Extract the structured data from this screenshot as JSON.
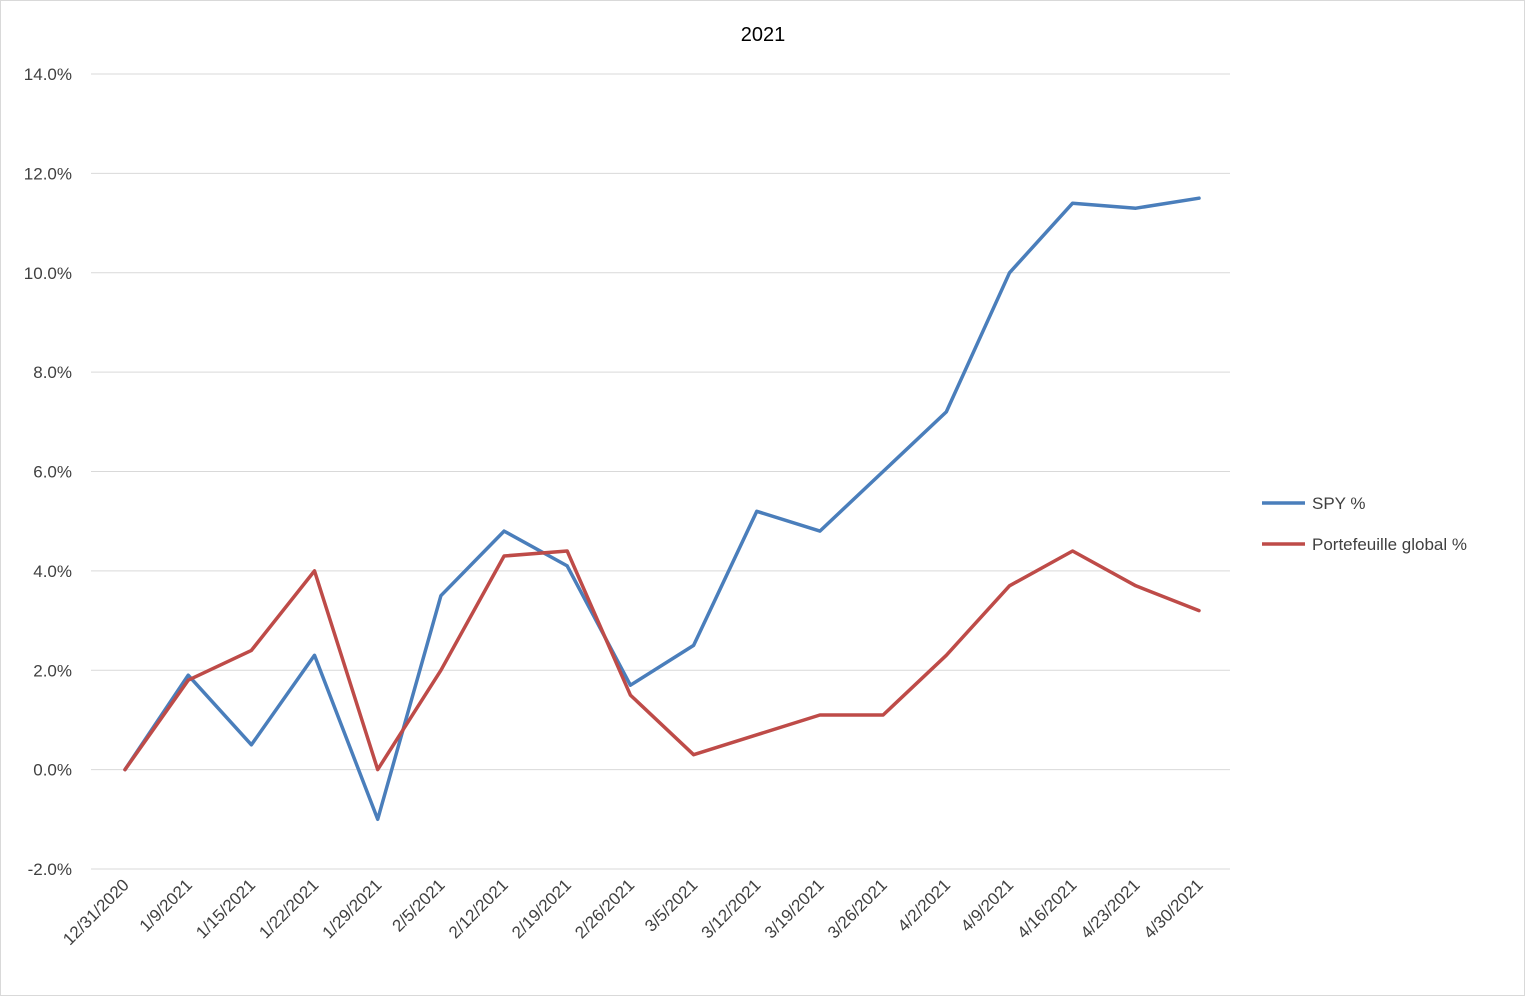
{
  "chart_data": {
    "type": "line",
    "title": "2021",
    "xlabel": "",
    "ylabel": "",
    "categories": [
      "12/31/2020",
      "1/9/2021",
      "1/15/2021",
      "1/22/2021",
      "1/29/2021",
      "2/5/2021",
      "2/12/2021",
      "2/19/2021",
      "2/26/2021",
      "3/5/2021",
      "3/12/2021",
      "3/19/2021",
      "3/26/2021",
      "4/2/2021",
      "4/9/2021",
      "4/16/2021",
      "4/23/2021",
      "4/30/2021"
    ],
    "series": [
      {
        "name": "SPY %",
        "color": "#4a7ebb",
        "values": [
          0.0,
          1.9,
          0.5,
          2.3,
          -1.0,
          3.5,
          4.8,
          4.1,
          1.7,
          2.5,
          5.2,
          4.8,
          6.0,
          7.2,
          10.0,
          11.4,
          11.3,
          11.5
        ]
      },
      {
        "name": "Portefeuille global %",
        "color": "#be4b48",
        "values": [
          0.0,
          1.8,
          2.4,
          4.0,
          0.0,
          2.0,
          4.3,
          4.4,
          1.5,
          0.3,
          0.7,
          1.1,
          1.1,
          2.3,
          3.7,
          4.4,
          3.7,
          3.2
        ]
      }
    ],
    "ylim": [
      -2.0,
      14.0
    ],
    "yticks": [
      -2.0,
      0.0,
      2.0,
      4.0,
      6.0,
      8.0,
      10.0,
      12.0,
      14.0
    ],
    "ytick_labels": [
      "-2.0%",
      "0.0%",
      "2.0%",
      "4.0%",
      "6.0%",
      "8.0%",
      "10.0%",
      "12.0%",
      "14.0%"
    ],
    "grid": true,
    "legend_position": "right"
  }
}
